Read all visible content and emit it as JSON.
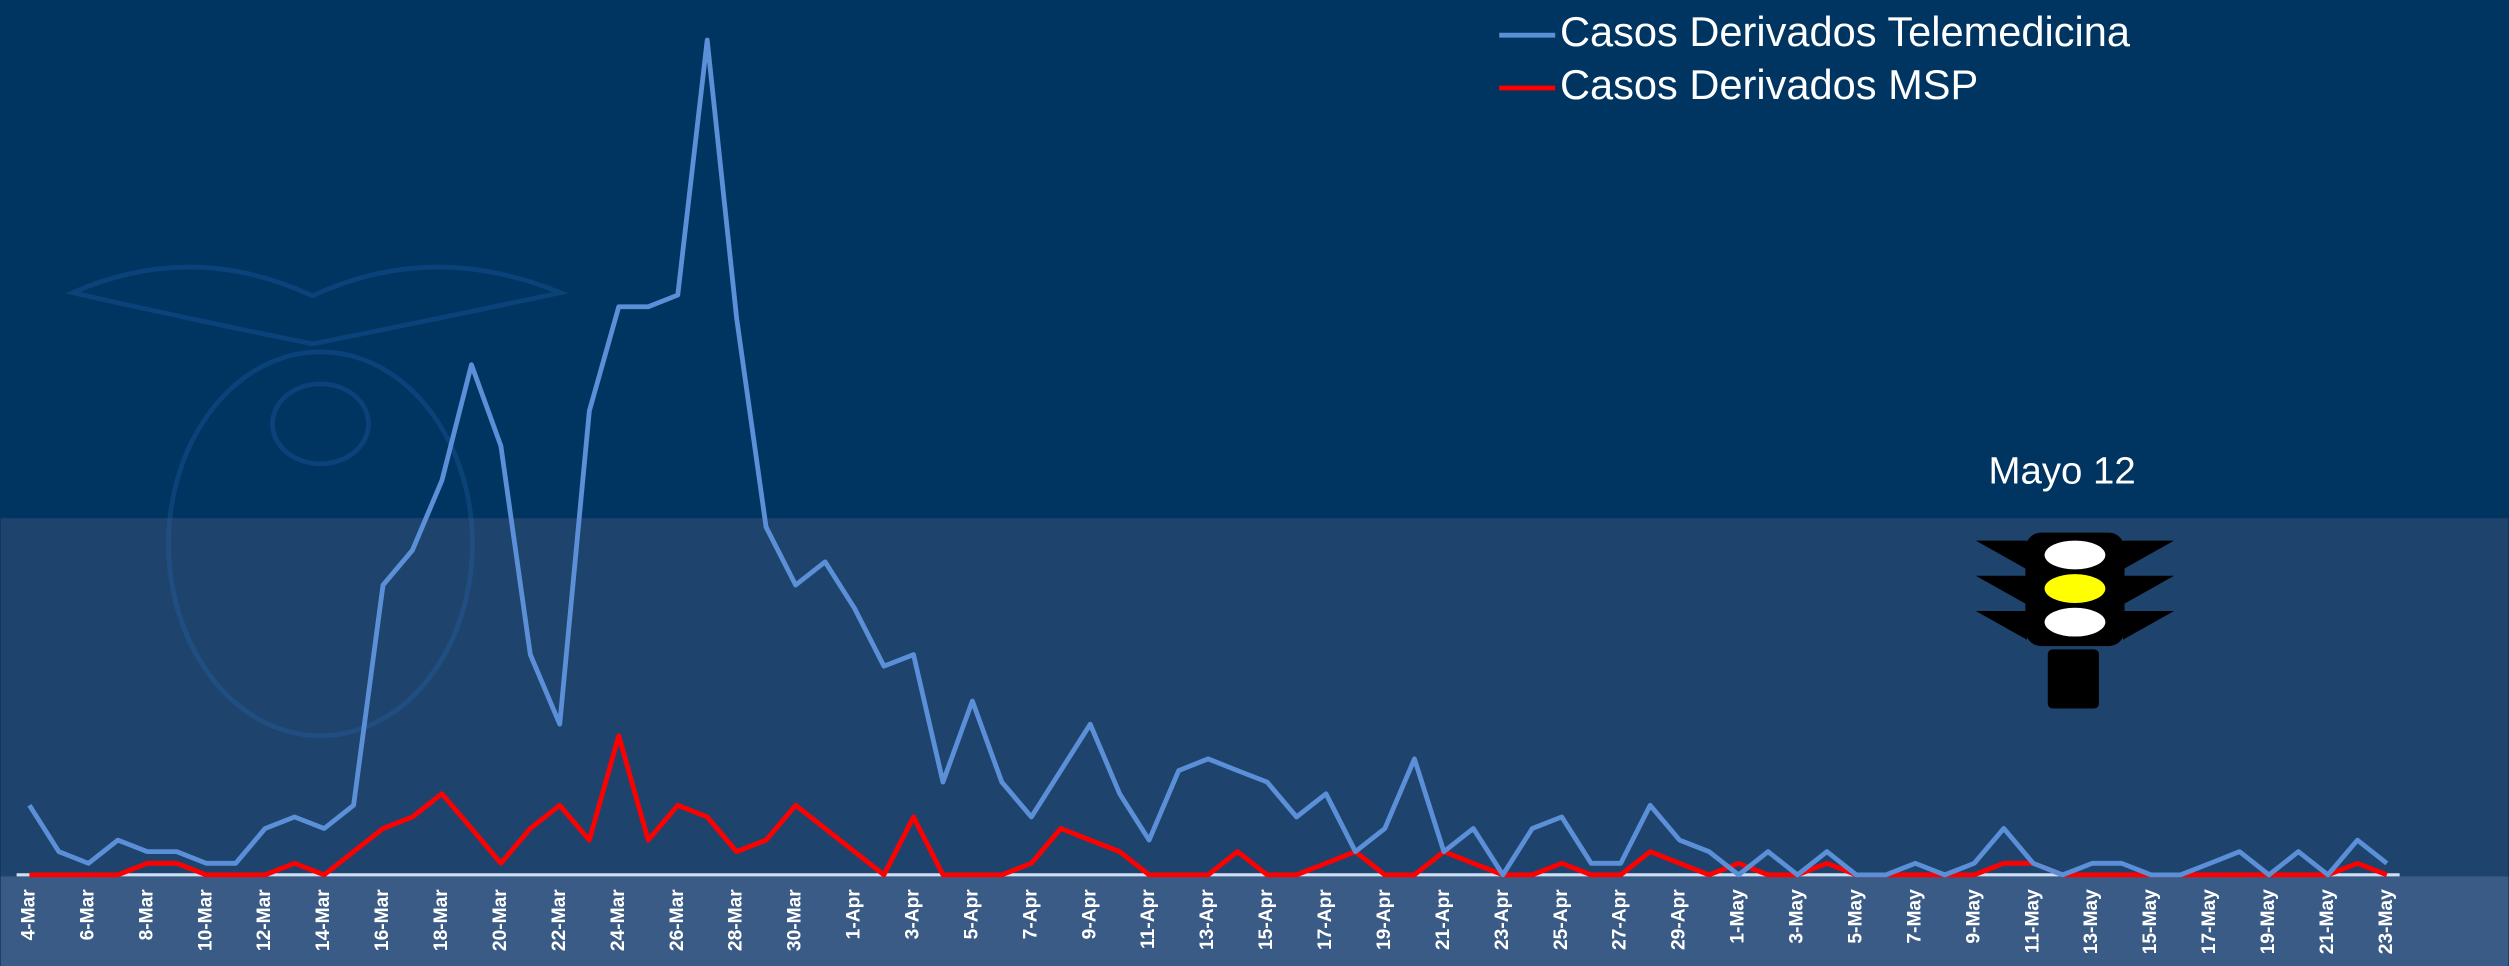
{
  "chart_data": {
    "type": "line",
    "annotation": "Mayo 12",
    "categories": [
      "4-Mar",
      null,
      "6-Mar",
      null,
      "8-Mar",
      null,
      "10-Mar",
      null,
      "12-Mar",
      null,
      "14-Mar",
      null,
      "16-Mar",
      null,
      "18-Mar",
      null,
      "20-Mar",
      null,
      "22-Mar",
      null,
      "24-Mar",
      null,
      "26-Mar",
      null,
      "28-Mar",
      null,
      "30-Mar",
      null,
      "1-Apr",
      null,
      "3-Apr",
      null,
      "5-Apr",
      null,
      "7-Apr",
      null,
      "9-Apr",
      null,
      "11-Apr",
      null,
      "13-Apr",
      null,
      "15-Apr",
      null,
      "17-Apr",
      null,
      "19-Apr",
      null,
      "21-Apr",
      null,
      "23-Apr",
      null,
      "25-Apr",
      null,
      "27-Apr",
      null,
      "29-Apr",
      null,
      "1-May",
      null,
      "3-May",
      null,
      "5-May",
      null,
      "7-May",
      null,
      "9-May",
      null,
      "11-May",
      null,
      "13-May",
      null,
      "15-May",
      null,
      "17-May",
      null,
      "19-May",
      null,
      "21-May",
      null,
      "23-May"
    ],
    "series": [
      {
        "name": "Casos Derivados Telemedicina",
        "color": "#5b8fd8",
        "values": [
          6,
          2,
          1,
          3,
          2,
          2,
          1,
          1,
          4,
          5,
          4,
          6,
          25,
          28,
          34,
          44,
          37,
          19,
          13,
          40,
          49,
          49,
          50,
          72,
          48,
          30,
          25,
          27,
          23,
          18,
          19,
          8,
          15,
          8,
          5,
          9,
          13,
          7,
          3,
          9,
          10,
          9,
          8,
          5,
          7,
          2,
          4,
          10,
          2,
          4,
          0,
          4,
          5,
          1,
          1,
          6,
          3,
          2,
          0,
          2,
          0,
          2,
          0,
          0,
          1,
          0,
          1,
          4,
          1,
          0,
          1,
          1,
          0,
          0,
          1,
          2,
          0,
          2,
          0,
          3,
          1
        ]
      },
      {
        "name": "Casos Derivados MSP",
        "color": "#ff0000",
        "values": [
          0,
          0,
          0,
          0,
          1,
          1,
          0,
          0,
          0,
          1,
          0,
          2,
          4,
          5,
          7,
          4,
          1,
          4,
          6,
          3,
          12,
          3,
          6,
          5,
          2,
          3,
          6,
          4,
          2,
          0,
          5,
          0,
          0,
          0,
          1,
          4,
          3,
          2,
          0,
          0,
          0,
          2,
          0,
          0,
          1,
          2,
          0,
          0,
          2,
          1,
          0,
          0,
          1,
          0,
          0,
          2,
          1,
          0,
          1,
          0,
          0,
          1,
          0,
          0,
          0,
          0,
          0,
          1,
          1,
          0,
          0,
          0,
          0,
          0,
          0,
          0,
          0,
          0,
          0,
          1,
          0
        ]
      }
    ],
    "ylim": [
      0,
      72
    ]
  }
}
